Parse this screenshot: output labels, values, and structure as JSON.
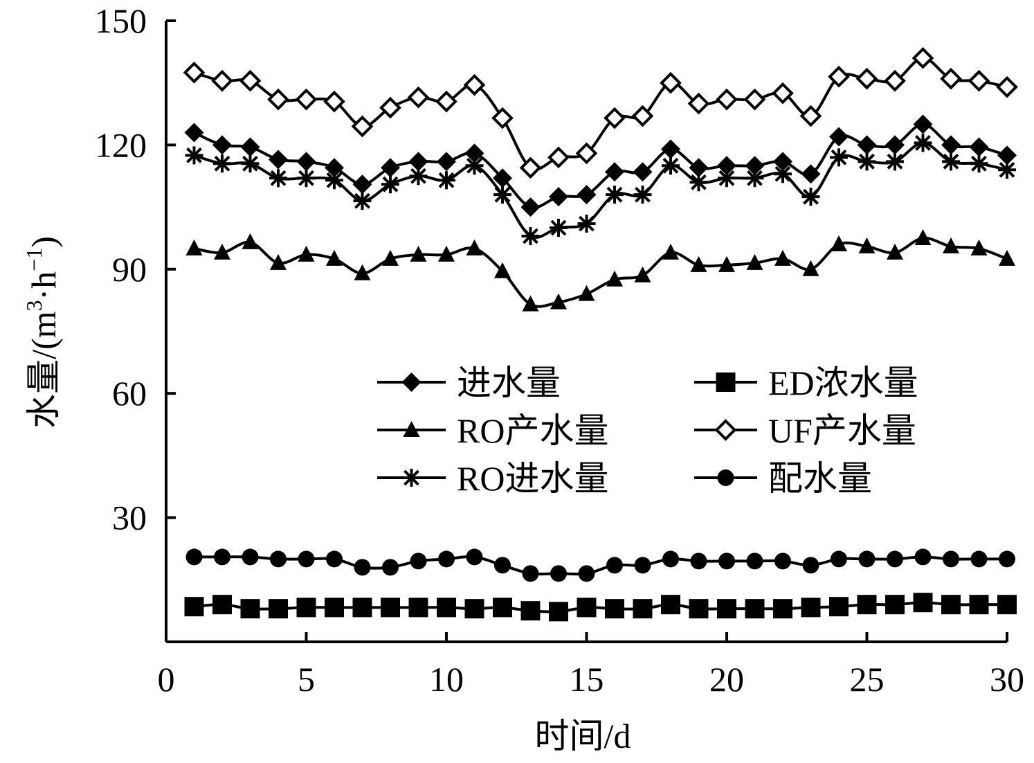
{
  "chart_data": {
    "type": "line",
    "title": "",
    "xlabel": "时间/d",
    "ylabel": {
      "prefix": "水量/(m",
      "sup1": "3",
      "mid": "·h",
      "sup2": "−1",
      "suffix": ")"
    },
    "xlim": [
      0,
      30
    ],
    "ylim": [
      0,
      150
    ],
    "xticks": [
      0,
      5,
      10,
      15,
      20,
      25,
      30
    ],
    "yticks": [
      30,
      60,
      90,
      120,
      150
    ],
    "grid": false,
    "legend": {
      "position": "center",
      "columns": 2
    },
    "x": [
      1,
      2,
      3,
      4,
      5,
      6,
      7,
      8,
      9,
      10,
      11,
      12,
      13,
      14,
      15,
      16,
      17,
      18,
      19,
      20,
      21,
      22,
      23,
      24,
      25,
      26,
      27,
      28,
      29,
      30
    ],
    "series": [
      {
        "name": "进水量",
        "marker": "diamond-filled",
        "values": [
          123,
          120,
          119.5,
          116.5,
          116,
          114.5,
          110.5,
          114.5,
          116,
          116,
          118,
          112,
          105,
          107.5,
          108,
          113.5,
          113.5,
          119,
          114.5,
          115,
          115,
          116,
          113,
          122,
          120,
          120,
          125,
          120,
          119.5,
          117.5
        ]
      },
      {
        "name": "ED浓水量",
        "marker": "square-filled",
        "values": [
          8.5,
          9,
          8,
          8,
          8.3,
          8.3,
          8.3,
          8.3,
          8.3,
          8.3,
          8,
          8.3,
          7.5,
          7.3,
          8.3,
          8,
          8,
          9,
          8,
          8,
          8,
          8,
          8.3,
          8.5,
          9,
          9,
          9.5,
          9,
          9,
          9
        ]
      },
      {
        "name": "RO产水量",
        "marker": "triangle-filled",
        "values": [
          95,
          94,
          96.5,
          91.5,
          93.5,
          92.5,
          89,
          92.5,
          93.5,
          93.5,
          95,
          89.5,
          81.5,
          82,
          84,
          87.5,
          88.5,
          94,
          91,
          91,
          91.5,
          92.5,
          90,
          96,
          95.5,
          94,
          97.5,
          95.5,
          95,
          92.5
        ]
      },
      {
        "name": "UF产水量",
        "marker": "diamond-open",
        "values": [
          137.5,
          135.5,
          135.5,
          131,
          131,
          130.5,
          124.5,
          129,
          131.5,
          130.5,
          134.5,
          126.5,
          114.5,
          117,
          118,
          126.5,
          127,
          135,
          130,
          131,
          131,
          132.5,
          127,
          136.5,
          136,
          135.5,
          141,
          136,
          135.5,
          134
        ]
      },
      {
        "name": "RO进水量",
        "marker": "asterisk",
        "values": [
          117.5,
          115.5,
          115.5,
          112,
          112,
          111.5,
          106.5,
          110.5,
          112.5,
          111.5,
          115,
          108,
          98,
          100,
          101,
          108,
          108,
          115,
          111,
          112,
          112,
          113,
          107.5,
          117,
          116,
          116,
          120.5,
          116,
          115.5,
          114
        ]
      },
      {
        "name": "配水量",
        "marker": "circle-filled",
        "values": [
          20.5,
          20.5,
          20.5,
          20,
          20,
          20,
          18,
          18,
          19.5,
          20,
          20.5,
          18.5,
          16.5,
          16.5,
          16.5,
          18.5,
          18.5,
          20,
          19.5,
          19.5,
          19.5,
          19.5,
          18.5,
          20,
          20,
          20,
          20.5,
          20,
          20,
          20
        ]
      }
    ]
  }
}
